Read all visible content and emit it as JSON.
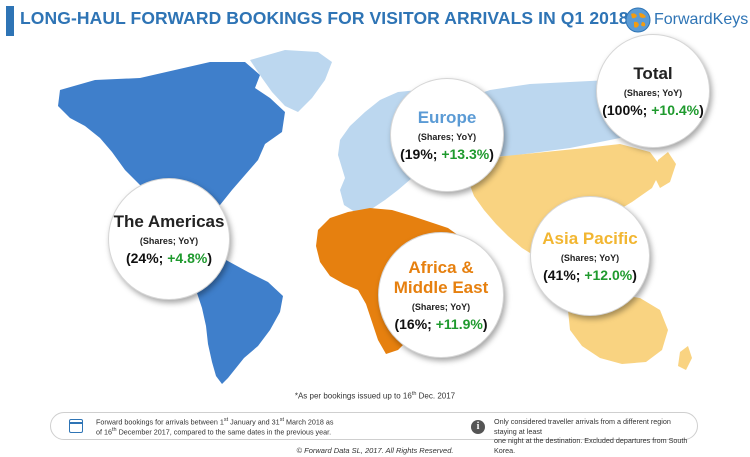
{
  "title": "LONG-HAUL FORWARD BOOKINGS FOR VISITOR ARRIVALS IN Q1 2018*",
  "logo": {
    "text": "ForwardKeys",
    "icon": "globe-icon"
  },
  "colors": {
    "title": "#2e74b5",
    "americas": "#3f7fcb",
    "europe": "#bcd7ef",
    "africa_middle_east": "#e6800f",
    "asia_pacific": "#f9d381",
    "positive_change": "#1f9a2e"
  },
  "regions": [
    {
      "name": "Total",
      "subtitle": "(Shares; YoY)",
      "share": "(100%;",
      "change": "+10.4%",
      "close": ")",
      "name_color": "#222222"
    },
    {
      "name": "Europe",
      "subtitle": "(Shares; YoY)",
      "share": "(19%;",
      "change": "+13.3%",
      "close": ")",
      "name_color": "#5b9bd5"
    },
    {
      "name": "The Americas",
      "subtitle": "(Shares; YoY)",
      "share": "(24%;",
      "change": "+4.8%",
      "close": ")",
      "name_color": "#222222"
    },
    {
      "name": "Asia Pacific",
      "subtitle": "(Shares; YoY)",
      "share": "(41%;",
      "change": "+12.0%",
      "close": ")",
      "name_color": "#f2b631"
    },
    {
      "name_line1": "Africa &",
      "name_line2": "Middle East",
      "subtitle": "(Shares; YoY)",
      "share": "(16%;",
      "change": "+11.9%",
      "close": ")",
      "name_color": "#e6800f"
    }
  ],
  "footnote": {
    "prefix": "*As per bookings issued up to 16",
    "sup": "th",
    "suffix": " Dec. 2017"
  },
  "info_left": {
    "l1a": "Forward bookings for arrivals between 1",
    "s1": "st",
    "l1b": " January and 31",
    "s2": "st",
    "l1c": " March 2018 as",
    "l2a": "of 16",
    "s3": "th",
    "l2b": " December 2017, compared to the same dates in the previous year."
  },
  "info_right": {
    "l1": "Only considered traveller arrivals from a different region staying at least",
    "l2": "one night at the destination. Excluded departures from South Korea."
  },
  "copyright": "© Forward Data SL, 2017. All Rights Reserved."
}
